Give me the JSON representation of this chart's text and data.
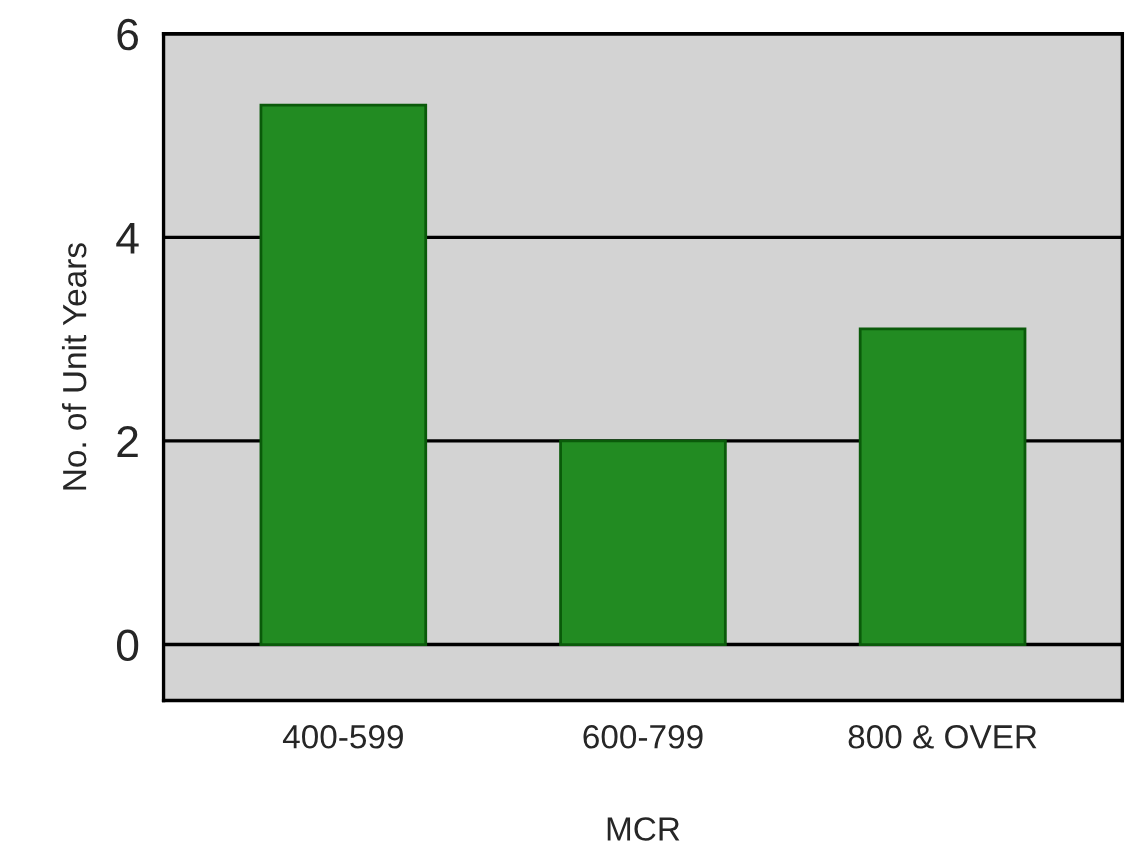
{
  "chart_data": {
    "type": "bar",
    "xlabel": "MCR",
    "ylabel": "No. of Unit Years",
    "categories": [
      "400-599",
      "600-799",
      "800 & OVER"
    ],
    "values": [
      5.3,
      2.0,
      3.1
    ],
    "color": "#228b22",
    "ylim": [
      -0.55,
      6
    ],
    "yticks": [
      0,
      2,
      4,
      6
    ],
    "grid": "y"
  }
}
